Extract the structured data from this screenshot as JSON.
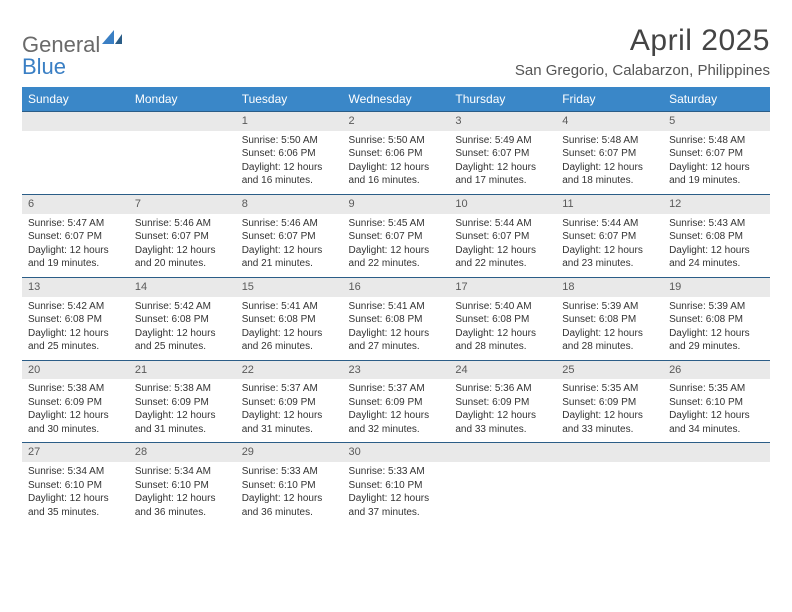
{
  "brand": {
    "part1": "General",
    "part2": "Blue"
  },
  "title": "April 2025",
  "location": "San Gregorio, Calabarzon, Philippines",
  "theme": {
    "header_bg": "#3a87c8",
    "header_fg": "#ffffff",
    "row_border": "#2b5d87",
    "daynum_bg": "#e9e9e9",
    "daynum_fg": "#5a5a5a",
    "page_bg": "#ffffff",
    "text": "#333333",
    "logo_gray": "#6a6a6a",
    "logo_blue": "#3a7fc4"
  },
  "dayHeaders": [
    "Sunday",
    "Monday",
    "Tuesday",
    "Wednesday",
    "Thursday",
    "Friday",
    "Saturday"
  ],
  "weeks": [
    [
      null,
      null,
      {
        "n": "1",
        "sr": "5:50 AM",
        "ss": "6:06 PM",
        "dl": "12 hours and 16 minutes."
      },
      {
        "n": "2",
        "sr": "5:50 AM",
        "ss": "6:06 PM",
        "dl": "12 hours and 16 minutes."
      },
      {
        "n": "3",
        "sr": "5:49 AM",
        "ss": "6:07 PM",
        "dl": "12 hours and 17 minutes."
      },
      {
        "n": "4",
        "sr": "5:48 AM",
        "ss": "6:07 PM",
        "dl": "12 hours and 18 minutes."
      },
      {
        "n": "5",
        "sr": "5:48 AM",
        "ss": "6:07 PM",
        "dl": "12 hours and 19 minutes."
      }
    ],
    [
      {
        "n": "6",
        "sr": "5:47 AM",
        "ss": "6:07 PM",
        "dl": "12 hours and 19 minutes."
      },
      {
        "n": "7",
        "sr": "5:46 AM",
        "ss": "6:07 PM",
        "dl": "12 hours and 20 minutes."
      },
      {
        "n": "8",
        "sr": "5:46 AM",
        "ss": "6:07 PM",
        "dl": "12 hours and 21 minutes."
      },
      {
        "n": "9",
        "sr": "5:45 AM",
        "ss": "6:07 PM",
        "dl": "12 hours and 22 minutes."
      },
      {
        "n": "10",
        "sr": "5:44 AM",
        "ss": "6:07 PM",
        "dl": "12 hours and 22 minutes."
      },
      {
        "n": "11",
        "sr": "5:44 AM",
        "ss": "6:07 PM",
        "dl": "12 hours and 23 minutes."
      },
      {
        "n": "12",
        "sr": "5:43 AM",
        "ss": "6:08 PM",
        "dl": "12 hours and 24 minutes."
      }
    ],
    [
      {
        "n": "13",
        "sr": "5:42 AM",
        "ss": "6:08 PM",
        "dl": "12 hours and 25 minutes."
      },
      {
        "n": "14",
        "sr": "5:42 AM",
        "ss": "6:08 PM",
        "dl": "12 hours and 25 minutes."
      },
      {
        "n": "15",
        "sr": "5:41 AM",
        "ss": "6:08 PM",
        "dl": "12 hours and 26 minutes."
      },
      {
        "n": "16",
        "sr": "5:41 AM",
        "ss": "6:08 PM",
        "dl": "12 hours and 27 minutes."
      },
      {
        "n": "17",
        "sr": "5:40 AM",
        "ss": "6:08 PM",
        "dl": "12 hours and 28 minutes."
      },
      {
        "n": "18",
        "sr": "5:39 AM",
        "ss": "6:08 PM",
        "dl": "12 hours and 28 minutes."
      },
      {
        "n": "19",
        "sr": "5:39 AM",
        "ss": "6:08 PM",
        "dl": "12 hours and 29 minutes."
      }
    ],
    [
      {
        "n": "20",
        "sr": "5:38 AM",
        "ss": "6:09 PM",
        "dl": "12 hours and 30 minutes."
      },
      {
        "n": "21",
        "sr": "5:38 AM",
        "ss": "6:09 PM",
        "dl": "12 hours and 31 minutes."
      },
      {
        "n": "22",
        "sr": "5:37 AM",
        "ss": "6:09 PM",
        "dl": "12 hours and 31 minutes."
      },
      {
        "n": "23",
        "sr": "5:37 AM",
        "ss": "6:09 PM",
        "dl": "12 hours and 32 minutes."
      },
      {
        "n": "24",
        "sr": "5:36 AM",
        "ss": "6:09 PM",
        "dl": "12 hours and 33 minutes."
      },
      {
        "n": "25",
        "sr": "5:35 AM",
        "ss": "6:09 PM",
        "dl": "12 hours and 33 minutes."
      },
      {
        "n": "26",
        "sr": "5:35 AM",
        "ss": "6:10 PM",
        "dl": "12 hours and 34 minutes."
      }
    ],
    [
      {
        "n": "27",
        "sr": "5:34 AM",
        "ss": "6:10 PM",
        "dl": "12 hours and 35 minutes."
      },
      {
        "n": "28",
        "sr": "5:34 AM",
        "ss": "6:10 PM",
        "dl": "12 hours and 36 minutes."
      },
      {
        "n": "29",
        "sr": "5:33 AM",
        "ss": "6:10 PM",
        "dl": "12 hours and 36 minutes."
      },
      {
        "n": "30",
        "sr": "5:33 AM",
        "ss": "6:10 PM",
        "dl": "12 hours and 37 minutes."
      },
      null,
      null,
      null
    ]
  ],
  "labels": {
    "sunrise": "Sunrise:",
    "sunset": "Sunset:",
    "daylight": "Daylight:"
  }
}
